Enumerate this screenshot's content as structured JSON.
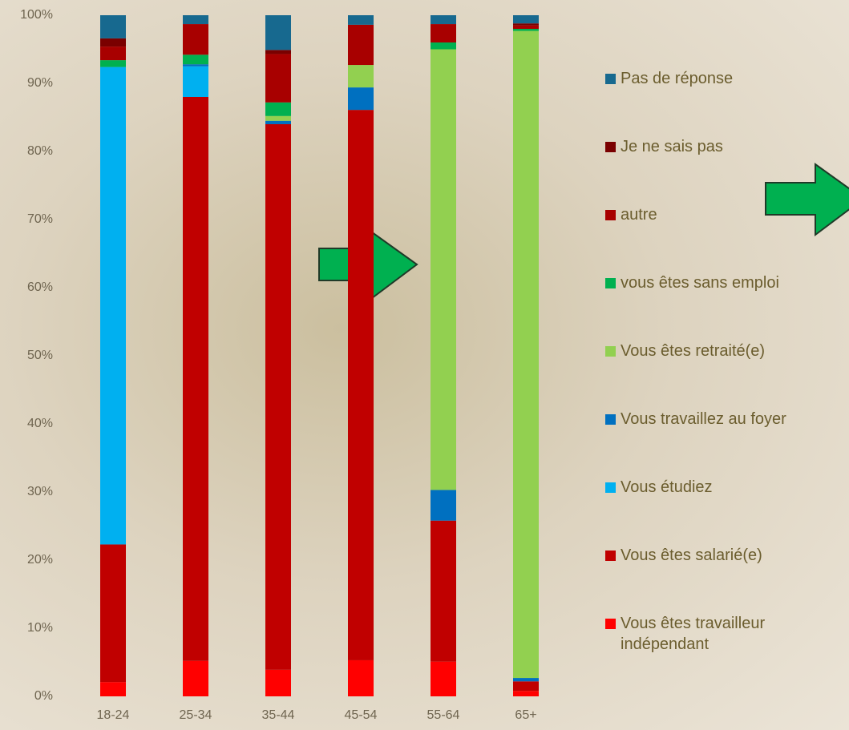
{
  "chart_data": {
    "type": "stacked-bar",
    "categories": [
      "18-24",
      "25-34",
      "35-44",
      "45-54",
      "55-64",
      "65+"
    ],
    "series": [
      {
        "name": "Vous êtes travailleur indépendant",
        "color": "#ff0000",
        "values": [
          2.1,
          5.2,
          3.9,
          5.3,
          5.1,
          0.8
        ]
      },
      {
        "name": "Vous êtes salarié(e)",
        "color": "#c00000",
        "values": [
          20.2,
          82.8,
          80.1,
          80.8,
          20.7,
          1.4
        ]
      },
      {
        "name": "Vous étudiez",
        "color": "#00b0f0",
        "values": [
          70.1,
          4.5,
          0,
          0,
          0,
          0
        ]
      },
      {
        "name": "Vous travaillez au foyer",
        "color": "#0070c0",
        "values": [
          0,
          0.3,
          0.5,
          3.3,
          4.5,
          0.5
        ]
      },
      {
        "name": "Vous êtes retraité(e)",
        "color": "#92d050",
        "values": [
          0,
          0,
          0.7,
          3.3,
          64.7,
          95.0
        ]
      },
      {
        "name": "vous êtes sans emploi",
        "color": "#00b050",
        "values": [
          1.0,
          1.4,
          2.0,
          0,
          1.0,
          0.3
        ]
      },
      {
        "name": "autre",
        "color": "#a80000",
        "values": [
          2.0,
          4.5,
          7.1,
          5.9,
          2.7,
          0.5
        ]
      },
      {
        "name": "Je ne sais pas",
        "color": "#7a0000",
        "values": [
          1.2,
          0,
          0.6,
          0,
          0,
          0.3
        ]
      },
      {
        "name": "Pas de réponse",
        "color": "#17698f",
        "values": [
          3.4,
          1.3,
          5.1,
          1.4,
          1.3,
          1.2
        ]
      }
    ],
    "ylim": [
      0,
      100
    ],
    "yticks": [
      {
        "value": 0,
        "label": "0%"
      },
      {
        "value": 10,
        "label": "10%"
      },
      {
        "value": 20,
        "label": "20%"
      },
      {
        "value": 30,
        "label": "30%"
      },
      {
        "value": 40,
        "label": "40%"
      },
      {
        "value": 50,
        "label": "50%"
      },
      {
        "value": 60,
        "label": "60%"
      },
      {
        "value": 70,
        "label": "70%"
      },
      {
        "value": 80,
        "label": "80%"
      },
      {
        "value": 90,
        "label": "90%"
      },
      {
        "value": 100,
        "label": "100%"
      }
    ],
    "legend": "right"
  }
}
